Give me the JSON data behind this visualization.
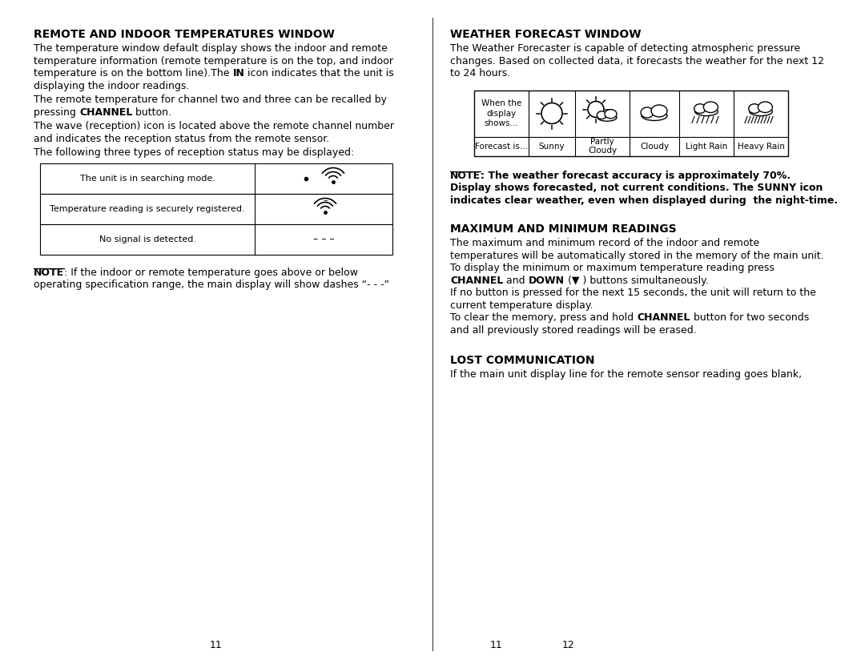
{
  "bg_color": "#ffffff",
  "left_col": {
    "heading": "REMOTE AND INDOOR TEMPERATURES WINDOW",
    "para1_lines": [
      "The temperature window default display shows the indoor and remote",
      "temperature information (remote temperature is on the top, and indoor",
      "temperature is on the bottom line).The IN icon indicates that the unit is",
      "displaying the indoor readings."
    ],
    "para2_lines": [
      "The remote temperature for channel two and three can be recalled by",
      "pressing CHANNEL button."
    ],
    "para3_lines": [
      "The wave (reception) icon is located above the remote channel number",
      "and indicates the reception status from the remote sensor."
    ],
    "para4": "The following three types of reception status may be displayed:",
    "table_rows": [
      "The unit is in searching mode.",
      "Temperature reading is securely registered.",
      "No signal is detected."
    ],
    "note_line1": ": If the indoor or remote temperature goes above or below",
    "note_line2": "operating specification range, the main display will show dashes “- - -”",
    "page_num": "11"
  },
  "right_col": {
    "heading1": "WEATHER FORECAST WINDOW",
    "wf_para1": [
      "The Weather Forecaster is capable of detecting atmospheric pressure",
      "changes. Based on collected data, it forecasts the weather for the next 12",
      "to 24 hours."
    ],
    "wt_label_top": "When the\ndisplay\nshows...",
    "wt_label_bottom": "Forecast is...",
    "wt_conditions": [
      "Sunny",
      "Partly\nCloudy",
      "Cloudy",
      "Light Rain",
      "Heavy Rain"
    ],
    "note2_line1": ": The weather forecast accuracy is approximately 70%.",
    "note2_line2": "Display shows forecasted, not current conditions. The SUNNY icon",
    "note2_line3": "indicates clear weather, even when displayed during  the night-time.",
    "heading2": "MAXIMUM AND MINIMUM READINGS",
    "max_lines": [
      "The maximum and minimum record of the indoor and remote",
      "temperatures will be automatically stored in the memory of the main unit.",
      "To display the minimum or maximum temperature reading press"
    ],
    "channel_down_line": "CHANNEL and DOWN (▼ ) buttons simultaneously.",
    "para3_lines": [
      "If no button is pressed for the next 15 seconds, the unit will return to the",
      "current temperature display."
    ],
    "para4_line1_pre": "To clear the memory, press and hold ",
    "para4_line1_bold": "CHANNEL",
    "para4_line1_rest": " button for two seconds",
    "para4_line2": "and all previously stored readings will be erased.",
    "heading3": "LOST COMMUNICATION",
    "para5": "If the main unit display line for the remote sensor reading goes blank,",
    "page_num_left": "11",
    "page_num_right": "12"
  }
}
